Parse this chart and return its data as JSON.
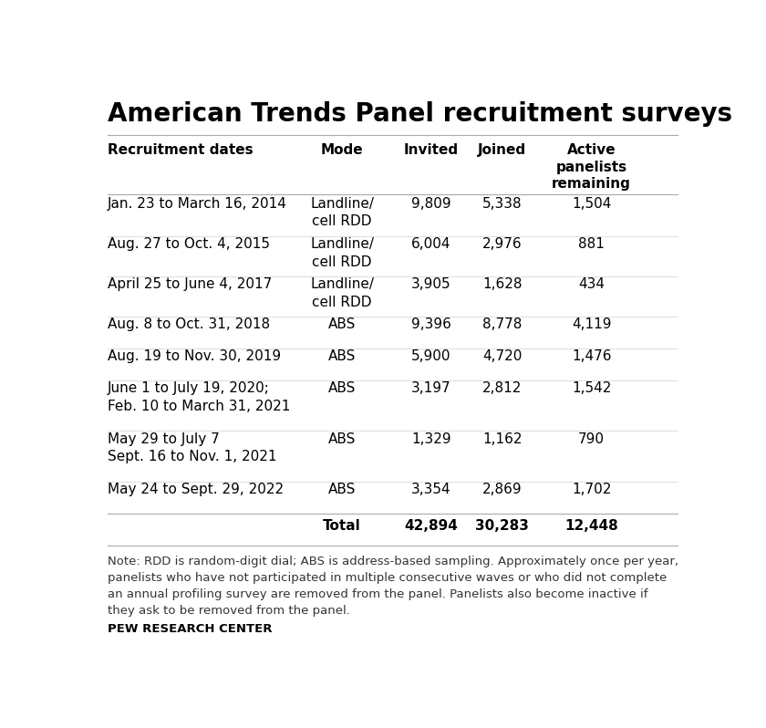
{
  "title": "American Trends Panel recruitment surveys",
  "col_headers_display": [
    "Recruitment dates",
    "Mode",
    "Invited",
    "Joined",
    "Active\npanelists\nremaining"
  ],
  "rows": [
    {
      "dates": "Jan. 23 to March 16, 2014",
      "mode": "Landline/\ncell RDD",
      "invited": "9,809",
      "joined": "5,338",
      "active": "1,504"
    },
    {
      "dates": "Aug. 27 to Oct. 4, 2015",
      "mode": "Landline/\ncell RDD",
      "invited": "6,004",
      "joined": "2,976",
      "active": "881"
    },
    {
      "dates": "April 25 to June 4, 2017",
      "mode": "Landline/\ncell RDD",
      "invited": "3,905",
      "joined": "1,628",
      "active": "434"
    },
    {
      "dates": "Aug. 8 to Oct. 31, 2018",
      "mode": "ABS",
      "invited": "9,396",
      "joined": "8,778",
      "active": "4,119"
    },
    {
      "dates": "Aug. 19 to Nov. 30, 2019",
      "mode": "ABS",
      "invited": "5,900",
      "joined": "4,720",
      "active": "1,476"
    },
    {
      "dates": "June 1 to July 19, 2020;\nFeb. 10 to March 31, 2021",
      "mode": "ABS",
      "invited": "3,197",
      "joined": "2,812",
      "active": "1,542"
    },
    {
      "dates": "May 29 to July 7\nSept. 16 to Nov. 1, 2021",
      "mode": "ABS",
      "invited": "1,329",
      "joined": "1,162",
      "active": "790"
    },
    {
      "dates": "May 24 to Sept. 29, 2022",
      "mode": "ABS",
      "invited": "3,354",
      "joined": "2,869",
      "active": "1,702"
    }
  ],
  "total_row": {
    "label": "Total",
    "invited": "42,894",
    "joined": "30,283",
    "active": "12,448"
  },
  "note": "Note: RDD is random-digit dial; ABS is address-based sampling. Approximately once per year,\npanelists who have not participated in multiple consecutive waves or who did not complete\nan annual profiling survey are removed from the panel. Panelists also become inactive if\nthey ask to be removed from the panel.",
  "source": "PEW RESEARCH CENTER",
  "bg_color": "#ffffff",
  "text_color": "#000000",
  "line_color_dark": "#aaaaaa",
  "line_color_light": "#dddddd",
  "title_fontsize": 20,
  "header_fontsize": 11,
  "body_fontsize": 11,
  "note_fontsize": 9.5
}
